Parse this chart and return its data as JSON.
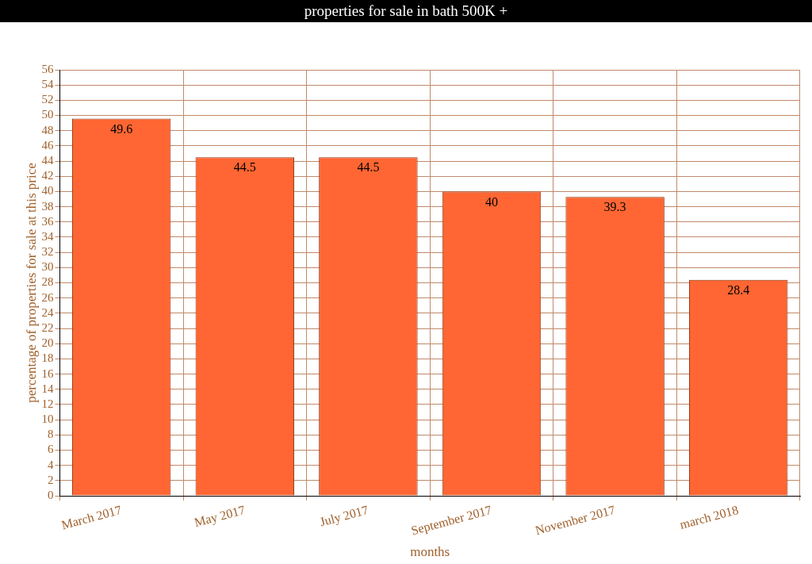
{
  "chart_data": {
    "type": "bar",
    "title": "properties for sale in bath 500K +",
    "xlabel": "months",
    "ylabel": "percentage of properties for sale at this price",
    "categories": [
      "March 2017",
      "May 2017",
      "July 2017",
      "September 2017",
      "November 2017",
      "march 2018"
    ],
    "values": [
      49.6,
      44.5,
      44.5,
      40,
      39.3,
      28.4
    ],
    "color": "#ff6633",
    "ylim": [
      0,
      56
    ],
    "yticks": [
      0,
      2,
      4,
      6,
      8,
      10,
      12,
      14,
      16,
      18,
      20,
      22,
      24,
      26,
      28,
      30,
      32,
      34,
      36,
      38,
      40,
      42,
      44,
      46,
      48,
      50,
      52,
      54,
      56
    ],
    "grid": true,
    "data_labels": true,
    "legend": false
  }
}
